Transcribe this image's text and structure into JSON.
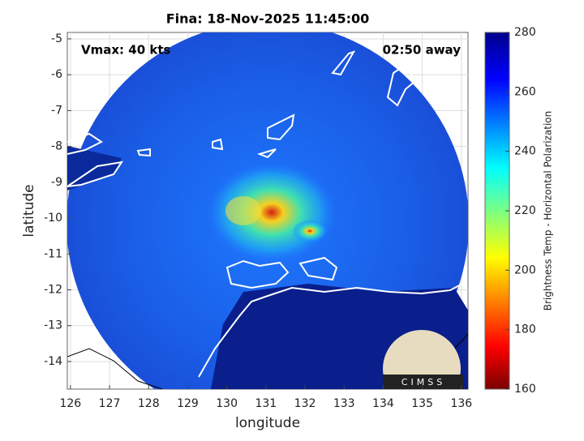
{
  "chart_data": {
    "type": "map",
    "title": "Fina: 18-Nov-2025 11:45:00",
    "xlabel": "longitude",
    "ylabel": "latitude",
    "xlim": [
      125.92,
      136.17
    ],
    "ylim": [
      -14.77,
      -4.82
    ],
    "xticks": [
      126,
      127,
      128,
      129,
      130,
      131,
      132,
      133,
      134,
      135,
      136
    ],
    "yticks": [
      -5,
      -6,
      -7,
      -8,
      -9,
      -10,
      -11,
      -12,
      -13,
      -14
    ],
    "grid": true,
    "annotations": [
      "Vmax: 40 kts",
      "02:50 away"
    ],
    "logo": "CIMSS",
    "colorbar": {
      "label": "Brightness Temp - Horizontal Polarization",
      "lim": [
        160,
        280
      ],
      "ticks": [
        160,
        180,
        200,
        220,
        240,
        260,
        280
      ]
    }
  }
}
